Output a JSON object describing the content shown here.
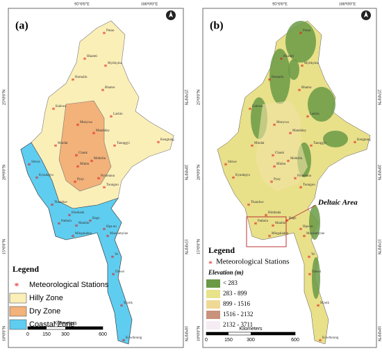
{
  "panels": [
    {
      "label": "(a)",
      "top_coords": [
        "95°0'0\"E",
        "100°0'0\"E"
      ],
      "side_coords": [
        "25°0'0\"N",
        "20°0'0\"N",
        "15°0'0\"N",
        "10°0'0\"N"
      ],
      "legend": {
        "title": "Legend",
        "items": [
          "Meteorological Stations",
          "Hilly Zone",
          "Dry Zone",
          "Coastal Zone"
        ]
      },
      "scale": {
        "unit": "Kilometers",
        "ticks": [
          0,
          150,
          300,
          600
        ]
      }
    },
    {
      "label": "(b)",
      "top_coords": [
        "95°0'0\"E",
        "100°0'0\"E"
      ],
      "side_coords": [
        "25°0'0\"N",
        "20°0'0\"N",
        "15°0'0\"N",
        "10°0'0\"N"
      ],
      "annotation": "Deltaic Area",
      "legend": {
        "title": "Legend",
        "items": [
          "Meteorological Stations"
        ],
        "elevation_title": "Elevation (m)",
        "classes": [
          "< 283",
          "283 - 899",
          "899 - 1516",
          "1516 - 2132",
          "2132 - 3711"
        ]
      },
      "scale": {
        "unit": "Kilometers",
        "ticks": [
          0,
          150,
          300,
          600
        ]
      }
    }
  ],
  "stations": [
    "Putao",
    "Hkamti",
    "Myitkyina",
    "Homalin",
    "Bhamo",
    "Kalewa",
    "Lashio",
    "Monywa",
    "Mandalay",
    "Mindat",
    "Chauk",
    "Minbu",
    "Meiktila",
    "Taunggyi",
    "Kengtung",
    "Pyinmana",
    "Toungoo",
    "Pyay",
    "Sittwe",
    "Kyaukpyu",
    "Thandwe",
    "Hinthada",
    "Bago",
    "Pathein",
    "Maubin",
    "Mingaladon",
    "Hpa-an",
    "Mawlamyine",
    "Ye",
    "Dawei",
    "Myeik",
    "Kawthoung"
  ]
}
